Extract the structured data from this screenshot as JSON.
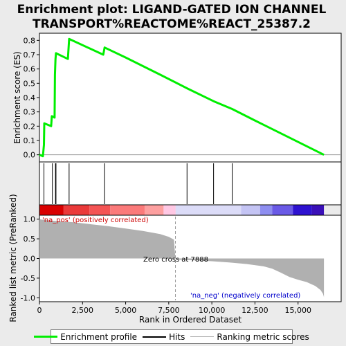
{
  "title_line1": "Enrichment plot: LIGAND-GATED ION CHANNEL",
  "title_line2": "TRANSPORT%REACTOME%REACT_25387.2",
  "legend": {
    "profile": "Enrichment profile",
    "hits": "Hits",
    "scores": "Ranking metric scores"
  },
  "colors": {
    "profile": "#00ee00",
    "hits": "#000000",
    "scores": "#b0b0b0",
    "background": "#ebebeb"
  },
  "chart_data": [
    {
      "type": "line",
      "ylabel": "Enrichment score (ES)",
      "xlim": [
        0,
        17500
      ],
      "ylim": [
        -0.05,
        0.85
      ],
      "yticks": [
        "0.0",
        "0.1",
        "0.2",
        "0.3",
        "0.4",
        "0.5",
        "0.6",
        "0.7",
        "0.8"
      ],
      "grid": false,
      "series": [
        {
          "x": [
            0,
            200,
            260,
            280,
            680,
            720,
            880,
            900,
            930,
            960,
            1650,
            1720,
            3700,
            3780,
            5000,
            6000,
            7000,
            8560,
            10100,
            11180,
            12500,
            14000,
            16500
          ],
          "y": [
            0.0,
            -0.01,
            0.07,
            0.22,
            0.2,
            0.27,
            0.26,
            0.56,
            0.67,
            0.71,
            0.67,
            0.81,
            0.7,
            0.75,
            0.68,
            0.62,
            0.56,
            0.465,
            0.375,
            0.32,
            0.24,
            0.15,
            0.0
          ]
        }
      ]
    },
    {
      "type": "hits",
      "xlim": [
        0,
        17500
      ],
      "hits": [
        260,
        750,
        930,
        960,
        1720,
        3780,
        8560,
        10100,
        11180
      ]
    },
    {
      "type": "area",
      "xlabel": "Rank in Ordered Dataset",
      "ylabel": "Ranked list metric (PreRanked)",
      "xlim": [
        0,
        17500
      ],
      "ylim": [
        -1.1,
        1.1
      ],
      "xticks": [
        "0",
        "2,500",
        "5,000",
        "7,500",
        "10,000",
        "12,500",
        "15,000"
      ],
      "yticks": [
        "-1.0",
        "-0.5",
        "0.0",
        "0.5",
        "1.0"
      ],
      "series": [
        {
          "x": [
            0,
            100,
            500,
            1000,
            2000,
            3000,
            4000,
            5000,
            6000,
            7000,
            7500,
            7800,
            7888,
            8000,
            9000,
            10000,
            11000,
            12000,
            13000,
            13500,
            14000,
            14500,
            15000,
            15500,
            16000,
            16300,
            16450,
            16500
          ],
          "y": [
            1.0,
            0.99,
            0.97,
            0.95,
            0.92,
            0.87,
            0.82,
            0.76,
            0.7,
            0.62,
            0.55,
            0.48,
            0.0,
            -0.03,
            -0.05,
            -0.07,
            -0.1,
            -0.14,
            -0.2,
            -0.26,
            -0.36,
            -0.47,
            -0.54,
            -0.6,
            -0.7,
            -0.8,
            -0.9,
            -0.98
          ]
        }
      ],
      "annotations": {
        "zero_cross": "Zero cross at 7888",
        "pos": "'na_pos' (positively correlated)",
        "neg": "'na_neg' (negatively correlated)"
      }
    }
  ]
}
